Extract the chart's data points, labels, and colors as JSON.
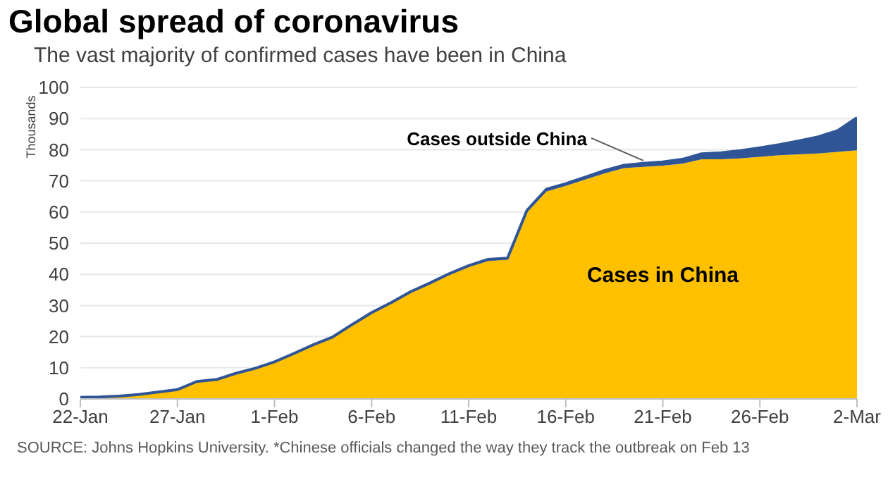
{
  "chart_data": {
    "type": "area",
    "stacked": true,
    "title": "Global spread of coronavirus",
    "subtitle": "The vast majority of confirmed cases have been in China",
    "ylabel": "Thousands",
    "x": [
      "--01-22",
      "--01-23",
      "--01-24",
      "--01-25",
      "--01-26",
      "--01-27",
      "--01-28",
      "--01-29",
      "--01-30",
      "--01-31",
      "--02-01",
      "--02-02",
      "--02-03",
      "--02-04",
      "--02-05",
      "--02-06",
      "--02-07",
      "--02-08",
      "--02-09",
      "--02-10",
      "--02-11",
      "--02-12",
      "--02-13",
      "--02-14",
      "--02-15",
      "--02-16",
      "--02-17",
      "--02-18",
      "--02-19",
      "--02-20",
      "--02-21",
      "--02-22",
      "--02-23",
      "--02-24",
      "--02-25",
      "--02-26",
      "--02-27",
      "--02-28",
      "--02-29",
      "--03-01",
      "--03-02"
    ],
    "series": [
      {
        "name": "Cases in China",
        "color": "#ffc000",
        "values": [
          0.5,
          0.6,
          0.9,
          1.4,
          2.1,
          2.9,
          5.5,
          6.1,
          8.1,
          9.7,
          11.8,
          14.4,
          17.2,
          19.7,
          23.7,
          27.4,
          30.6,
          34.1,
          36.8,
          39.8,
          42.3,
          44.3,
          44.7,
          59.9,
          66.6,
          68.4,
          70.4,
          72.4,
          74.1,
          74.5,
          74.9,
          75.5,
          76.9,
          76.9,
          77.2,
          77.7,
          78.2,
          78.5,
          78.8,
          79.3,
          79.8
        ]
      },
      {
        "name": "Cases outside China",
        "color": "#2f5597",
        "values": [
          0.0,
          0.0,
          0.0,
          0.0,
          0.1,
          0.1,
          0.1,
          0.1,
          0.1,
          0.1,
          0.1,
          0.2,
          0.2,
          0.2,
          0.2,
          0.3,
          0.3,
          0.3,
          0.4,
          0.4,
          0.5,
          0.5,
          0.5,
          0.6,
          0.7,
          0.7,
          0.8,
          0.9,
          0.9,
          1.1,
          1.2,
          1.4,
          1.8,
          2.1,
          2.5,
          2.9,
          3.4,
          4.3,
          5.3,
          6.8,
          10.5
        ]
      }
    ],
    "ylim": [
      0,
      100
    ],
    "yticks": [
      0,
      10,
      20,
      30,
      40,
      50,
      60,
      70,
      80,
      90,
      100
    ],
    "xlim": [
      "--01-22",
      "--03-02"
    ],
    "xticks": [
      {
        "value": "--01-22",
        "label": "22-Jan"
      },
      {
        "value": "--01-27",
        "label": "27-Jan"
      },
      {
        "value": "--02-01",
        "label": "1-Feb"
      },
      {
        "value": "--02-06",
        "label": "6-Feb"
      },
      {
        "value": "--02-11",
        "label": "11-Feb"
      },
      {
        "value": "--02-16",
        "label": "16-Feb"
      },
      {
        "value": "--02-21",
        "label": "21-Feb"
      },
      {
        "value": "--02-26",
        "label": "26-Feb"
      },
      {
        "value": "--03-02",
        "label": "2-Mar"
      }
    ],
    "grid": "y",
    "annotations": [
      "SOURCE: Johns Hopkins University. *Chinese officials changed the way they track the outbreak on Feb 13"
    ]
  }
}
